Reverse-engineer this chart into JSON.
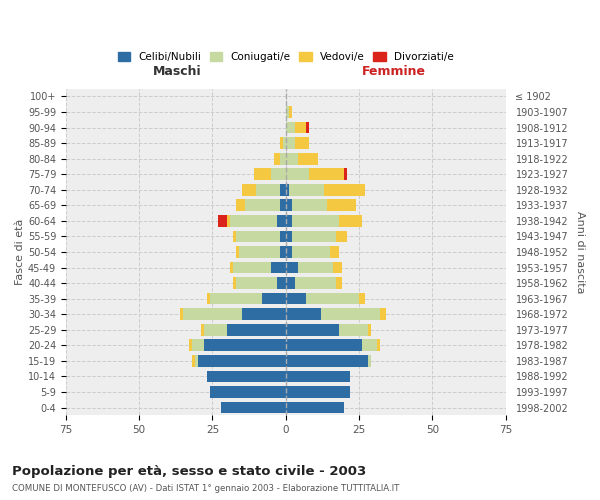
{
  "age_groups": [
    "0-4",
    "5-9",
    "10-14",
    "15-19",
    "20-24",
    "25-29",
    "30-34",
    "35-39",
    "40-44",
    "45-49",
    "50-54",
    "55-59",
    "60-64",
    "65-69",
    "70-74",
    "75-79",
    "80-84",
    "85-89",
    "90-94",
    "95-99",
    "100+"
  ],
  "birth_years": [
    "1998-2002",
    "1993-1997",
    "1988-1992",
    "1983-1987",
    "1978-1982",
    "1973-1977",
    "1968-1972",
    "1963-1967",
    "1958-1962",
    "1953-1957",
    "1948-1952",
    "1943-1947",
    "1938-1942",
    "1933-1937",
    "1928-1932",
    "1923-1927",
    "1918-1922",
    "1913-1917",
    "1908-1912",
    "1903-1907",
    "≤ 1902"
  ],
  "maschi": {
    "celibi": [
      22,
      26,
      27,
      30,
      28,
      20,
      15,
      8,
      3,
      5,
      2,
      2,
      3,
      2,
      2,
      0,
      0,
      0,
      0,
      0,
      0
    ],
    "coniugati": [
      0,
      0,
      0,
      1,
      4,
      8,
      20,
      18,
      14,
      13,
      14,
      15,
      16,
      12,
      8,
      5,
      2,
      1,
      0,
      0,
      0
    ],
    "vedovi": [
      0,
      0,
      0,
      1,
      1,
      1,
      1,
      1,
      1,
      1,
      1,
      1,
      1,
      3,
      5,
      6,
      2,
      1,
      0,
      0,
      0
    ],
    "divorziati": [
      0,
      0,
      0,
      0,
      0,
      0,
      0,
      0,
      0,
      0,
      0,
      0,
      3,
      0,
      0,
      0,
      0,
      0,
      0,
      0,
      0
    ]
  },
  "femmine": {
    "nubili": [
      20,
      22,
      22,
      28,
      26,
      18,
      12,
      7,
      3,
      4,
      2,
      2,
      2,
      2,
      1,
      0,
      0,
      0,
      0,
      0,
      0
    ],
    "coniugate": [
      0,
      0,
      0,
      1,
      5,
      10,
      20,
      18,
      14,
      12,
      13,
      15,
      16,
      12,
      12,
      8,
      4,
      3,
      3,
      1,
      0
    ],
    "vedove": [
      0,
      0,
      0,
      0,
      1,
      1,
      2,
      2,
      2,
      3,
      3,
      4,
      8,
      10,
      14,
      12,
      7,
      5,
      4,
      1,
      0
    ],
    "divorziate": [
      0,
      0,
      0,
      0,
      0,
      0,
      0,
      0,
      0,
      0,
      0,
      0,
      0,
      0,
      0,
      1,
      0,
      0,
      1,
      0,
      0
    ]
  },
  "colors": {
    "celibi": "#2e6da4",
    "coniugati": "#c5d9a0",
    "vedovi": "#f5c842",
    "divorziati": "#d9231b"
  },
  "legend_labels": [
    "Celibi/Nubili",
    "Coniugati/e",
    "Vedovi/e",
    "Divorziati/e"
  ],
  "title": "Popolazione per età, sesso e stato civile - 2003",
  "subtitle": "COMUNE DI MONTEFUSCO (AV) - Dati ISTAT 1° gennaio 2003 - Elaborazione TUTTITALIA.IT",
  "xlabel_left": "Maschi",
  "xlabel_right": "Femmine",
  "ylabel_left": "Fasce di età",
  "ylabel_right": "Anni di nascita",
  "xlim": 75,
  "background_color": "#ffffff",
  "plot_bg_color": "#eeeeee"
}
